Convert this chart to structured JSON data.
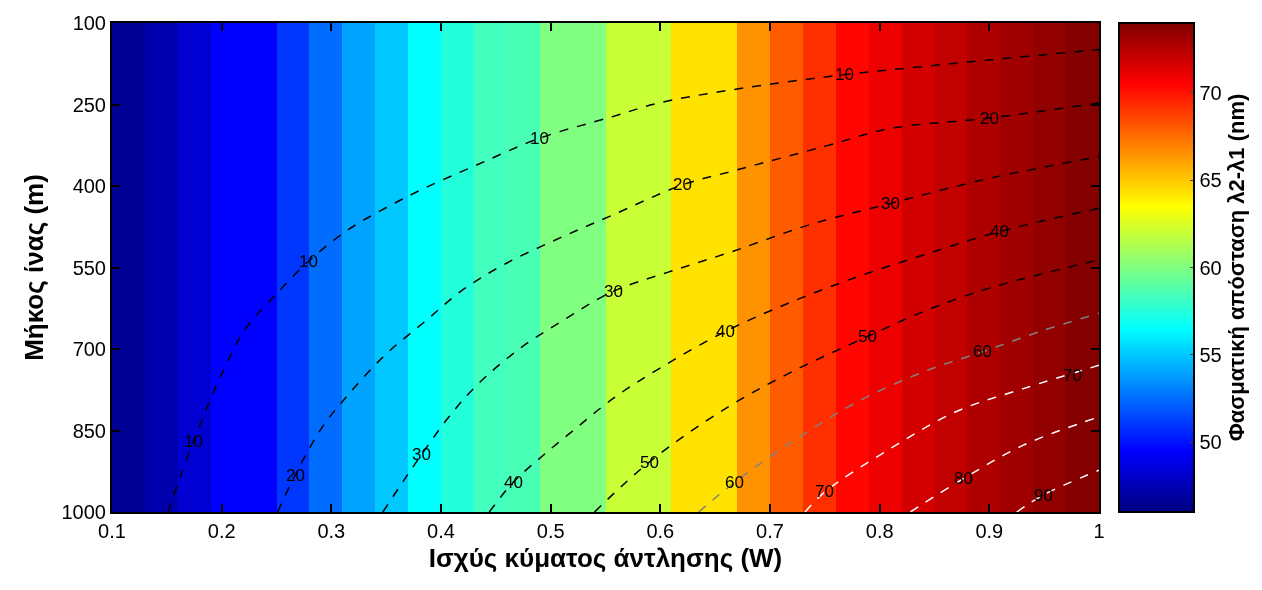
{
  "chart_data": {
    "type": "heatmap",
    "xlabel": "Ισχύς κύματος άντλησης (W)",
    "ylabel": "Μήκος ίνας (m)",
    "clabel": "Φασματική απόσταση λ2-λ1 (nm)",
    "x": [
      0.115,
      0.145,
      0.175,
      0.205,
      0.235,
      0.265,
      0.295,
      0.325,
      0.355,
      0.385,
      0.415,
      0.445,
      0.475,
      0.505,
      0.535,
      0.565,
      0.595,
      0.625,
      0.655,
      0.685,
      0.715,
      0.745,
      0.775,
      0.805,
      0.835,
      0.865,
      0.895,
      0.925,
      0.955,
      0.985
    ],
    "cells": [
      [
        46.5,
        47.3,
        48.3,
        49.5,
        49.5,
        51,
        52.5,
        54,
        55,
        56.5,
        57.5,
        58.3,
        58.5,
        60,
        60,
        62,
        62,
        64.3,
        64.3,
        66.5,
        68,
        69.2,
        70.3,
        71,
        71.7,
        72.2,
        72.7,
        73.1,
        73.5,
        73.9
      ]
    ],
    "clim": [
      46,
      74
    ],
    "cticks": [
      50,
      55,
      60,
      65,
      70
    ],
    "xlim": [
      0.1,
      1.0
    ],
    "xticks": [
      0.1,
      0.2,
      0.3,
      0.4,
      0.5,
      0.6,
      0.7,
      0.8,
      0.9,
      {
        "value": 1.0,
        "label": "1"
      }
    ],
    "ylim": [
      1000,
      100
    ],
    "yticks": [
      100,
      250,
      400,
      550,
      700,
      850,
      1000
    ],
    "legend": false,
    "line_style": "dashed",
    "series": [
      {
        "type": "line",
        "color": "#000000",
        "x": [
          0.151,
          0.174,
          0.201,
          0.222,
          0.246,
          0.279,
          0.315,
          0.349,
          0.385,
          0.433,
          0.49,
          0.557,
          0.599,
          0.665,
          0.768,
          0.84,
          0.915,
          1.0
        ],
        "values": [
          1000,
          871,
          742,
          662,
          607,
          539,
          481,
          441,
          404,
          361,
          312,
          272,
          247,
          223,
          195,
          180,
          165,
          149
        ]
      },
      {
        "type": "line",
        "color": "#000000",
        "x": [
          0.251,
          0.267,
          0.291,
          0.315,
          0.349,
          0.385,
          0.418,
          0.457,
          0.508,
          0.557,
          0.62,
          0.665,
          0.75,
          0.81,
          0.9,
          1.0
        ],
        "values": [
          1000,
          932,
          846,
          785,
          711,
          650,
          594,
          545,
          496,
          453,
          398,
          373,
          327,
          294,
          275,
          247
        ]
      },
      {
        "type": "line",
        "color": "#000000",
        "x": [
          0.347,
          0.367,
          0.382,
          0.406,
          0.433,
          0.472,
          0.514,
          0.557,
          0.608,
          0.665,
          0.735,
          0.81,
          0.9,
          1.0
        ],
        "values": [
          1000,
          939,
          895,
          828,
          766,
          699,
          644,
          594,
          558,
          521,
          472,
          432,
          386,
          346
        ]
      },
      {
        "type": "line",
        "color": "#000000",
        "x": [
          0.444,
          0.466,
          0.493,
          0.523,
          0.557,
          0.599,
          0.659,
          0.72,
          0.78,
          0.84,
          0.909,
          1.0
        ],
        "values": [
          1000,
          945,
          896,
          846,
          791,
          736,
          668,
          613,
          567,
          527,
          484,
          441
        ]
      },
      {
        "type": "line",
        "color": "#000000",
        "x": [
          0.54,
          0.59,
          0.659,
          0.72,
          0.789,
          0.84,
          0.9,
          1.0
        ],
        "values": [
          1000,
          908,
          810,
          742,
          677,
          631,
          588,
          536
        ]
      },
      {
        "type": "line",
        "color": "#808080",
        "x": [
          0.635,
          0.668,
          0.72,
          0.78,
          0.84,
          0.894,
          0.946,
          1.0
        ],
        "values": [
          1000,
          945,
          871,
          797,
          742,
          705,
          668,
          634
        ]
      },
      {
        "type": "line",
        "color": "#ffffff",
        "x": [
          0.732,
          0.75,
          0.81,
          0.87,
          0.931,
          1.0
        ],
        "values": [
          1000,
          963,
          883,
          815,
          773,
          730
        ]
      },
      {
        "type": "line",
        "color": "#ffffff",
        "x": [
          0.828,
          0.876,
          0.931,
          1.0
        ],
        "values": [
          1000,
          939,
          877,
          825
        ]
      },
      {
        "type": "line",
        "color": "#ffffff",
        "x": [
          0.925,
          0.949,
          1.0
        ],
        "values": [
          1000,
          969,
          923
        ]
      }
    ],
    "annotations": [
      {
        "text": "10",
        "x": 0.174,
        "y": 871
      },
      {
        "text": "10",
        "x": 0.279,
        "y": 539
      },
      {
        "text": "10",
        "x": 0.49,
        "y": 312
      },
      {
        "text": "10",
        "x": 0.768,
        "y": 195
      },
      {
        "text": "20",
        "x": 0.267,
        "y": 932
      },
      {
        "text": "20",
        "x": 0.62,
        "y": 398
      },
      {
        "text": "20",
        "x": 0.9,
        "y": 275
      },
      {
        "text": "30",
        "x": 0.382,
        "y": 895
      },
      {
        "text": "30",
        "x": 0.557,
        "y": 594
      },
      {
        "text": "30",
        "x": 0.81,
        "y": 432
      },
      {
        "text": "40",
        "x": 0.466,
        "y": 945
      },
      {
        "text": "40",
        "x": 0.659,
        "y": 668
      },
      {
        "text": "40",
        "x": 0.909,
        "y": 484
      },
      {
        "text": "50",
        "x": 0.59,
        "y": 908
      },
      {
        "text": "50",
        "x": 0.789,
        "y": 677
      },
      {
        "text": "60",
        "x": 0.668,
        "y": 945
      },
      {
        "text": "60",
        "x": 0.894,
        "y": 705
      },
      {
        "text": "70",
        "x": 0.75,
        "y": 963
      },
      {
        "text": "70",
        "x": 0.976,
        "y": 748
      },
      {
        "text": "80",
        "x": 0.876,
        "y": 939
      },
      {
        "text": "90",
        "x": 0.949,
        "y": 969
      }
    ]
  }
}
